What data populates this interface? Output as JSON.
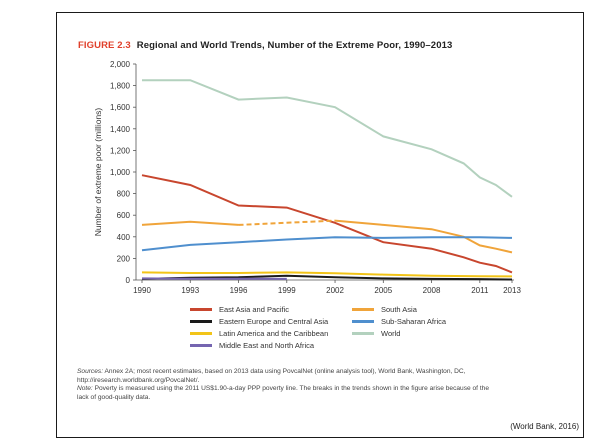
{
  "figure": {
    "number": "FIGURE 2.3",
    "title": "Regional and World Trends, Number of the Extreme Poor, 1990–2013"
  },
  "chart_data": {
    "type": "line",
    "ylabel": "Number of extreme poor (millions)",
    "xlabel": "",
    "ylim": [
      0,
      2000
    ],
    "y_ticks": [
      "0",
      "200",
      "400",
      "600",
      "800",
      "1,000",
      "1,200",
      "1,400",
      "1,600",
      "1,800",
      "2,000"
    ],
    "x_ticks": [
      "1990",
      "1993",
      "1996",
      "1999",
      "2002",
      "2005",
      "2008",
      "2011",
      "2013"
    ],
    "grid": false,
    "legend_placement": "bottom",
    "series": [
      {
        "name": "East Asia and Pacific",
        "color": "#c8462e",
        "points": [
          [
            1990,
            970
          ],
          [
            1993,
            880
          ],
          [
            1996,
            690
          ],
          [
            1999,
            670
          ],
          [
            2002,
            530
          ],
          [
            2005,
            350
          ],
          [
            2008,
            290
          ],
          [
            2010,
            210
          ],
          [
            2011,
            160
          ],
          [
            2012,
            130
          ],
          [
            2013,
            70
          ]
        ]
      },
      {
        "name": "Eastern Europe and Central Asia",
        "color": "#1a1a1a",
        "points": [
          [
            1990,
            10
          ],
          [
            1993,
            20
          ],
          [
            1996,
            25
          ],
          [
            1999,
            40
          ],
          [
            2002,
            25
          ],
          [
            2005,
            15
          ],
          [
            2008,
            10
          ],
          [
            2011,
            8
          ],
          [
            2013,
            5
          ]
        ]
      },
      {
        "name": "Latin America and the Caribbean",
        "color": "#f2c418",
        "points": [
          [
            1990,
            70
          ],
          [
            1993,
            65
          ],
          [
            1996,
            65
          ],
          [
            1999,
            70
          ],
          [
            2002,
            62
          ],
          [
            2005,
            50
          ],
          [
            2008,
            40
          ],
          [
            2011,
            35
          ],
          [
            2013,
            33
          ]
        ]
      },
      {
        "name": "Middle East and North Africa",
        "color": "#7565b0",
        "points": [
          [
            1990,
            15
          ],
          [
            1993,
            12
          ],
          [
            1996,
            12
          ],
          [
            1999,
            10
          ]
        ]
      },
      {
        "name": "South Asia",
        "color": "#f0a43a",
        "points": [
          [
            1990,
            510
          ],
          [
            1993,
            540
          ],
          [
            1996,
            510
          ],
          [
            2002,
            550
          ],
          [
            2005,
            510
          ],
          [
            2008,
            470
          ],
          [
            2010,
            400
          ],
          [
            2011,
            320
          ],
          [
            2012,
            290
          ],
          [
            2013,
            256
          ]
        ],
        "dashed_gap": [
          1996,
          2002
        ]
      },
      {
        "name": "Sub-Saharan Africa",
        "color": "#4f8fce",
        "points": [
          [
            1990,
            275
          ],
          [
            1993,
            325
          ],
          [
            1996,
            350
          ],
          [
            1999,
            375
          ],
          [
            2002,
            395
          ],
          [
            2005,
            390
          ],
          [
            2008,
            395
          ],
          [
            2011,
            395
          ],
          [
            2013,
            390
          ]
        ]
      },
      {
        "name": "World",
        "color": "#b3d1be",
        "points": [
          [
            1990,
            1850
          ],
          [
            1993,
            1850
          ],
          [
            1996,
            1670
          ],
          [
            1999,
            1690
          ],
          [
            2002,
            1600
          ],
          [
            2005,
            1330
          ],
          [
            2008,
            1210
          ],
          [
            2010,
            1080
          ],
          [
            2011,
            950
          ],
          [
            2012,
            880
          ],
          [
            2013,
            770
          ]
        ]
      }
    ]
  },
  "legend": {
    "items": [
      {
        "label": "East Asia and Pacific",
        "color": "#c8462e"
      },
      {
        "label": "South Asia",
        "color": "#f0a43a"
      },
      {
        "label": "Eastern Europe and Central Asia",
        "color": "#1a1a1a"
      },
      {
        "label": "Sub-Saharan Africa",
        "color": "#4f8fce"
      },
      {
        "label": "Latin America and the Caribbean",
        "color": "#f2c418"
      },
      {
        "label": "World",
        "color": "#b3d1be"
      },
      {
        "label": "Middle East and North Africa",
        "color": "#7565b0"
      }
    ]
  },
  "notes": {
    "sources_label": "Sources:",
    "sources_text": "Annex 2A; most recent estimates, based on 2013 data using PovcalNet (online analysis tool), World Bank, Washington, DC, http://iresearch.worldbank.org/PovcalNet/.",
    "note_label": "Note:",
    "note_text": "Poverty is measured using the 2011 US$1.90-a-day PPP poverty line. The breaks in the trends shown in the figure arise because of the lack of good-quality data."
  },
  "citation": "(World Bank, 2016)"
}
